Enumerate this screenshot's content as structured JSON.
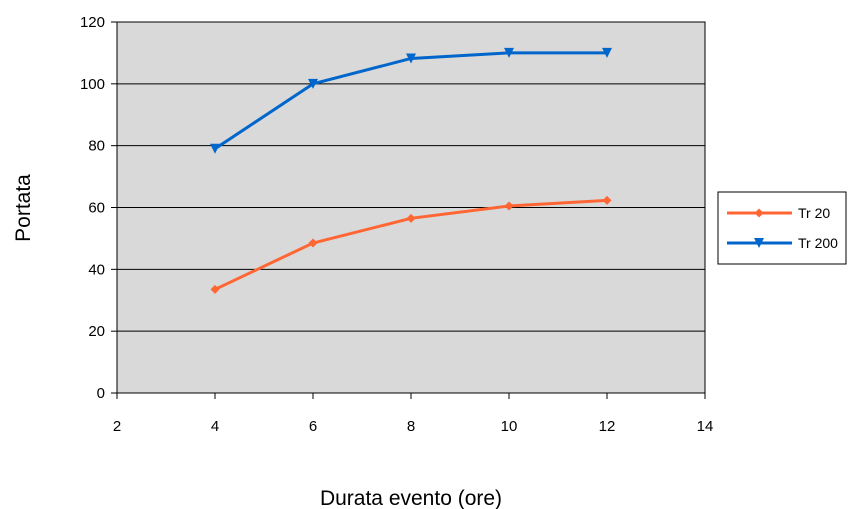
{
  "chart_data": {
    "type": "line",
    "xlabel": "Durata evento (ore)",
    "ylabel": "Portata",
    "xlim": [
      2,
      14
    ],
    "ylim": [
      0,
      120
    ],
    "xticks": [
      2,
      4,
      6,
      8,
      10,
      12,
      14
    ],
    "yticks": [
      0,
      20,
      40,
      60,
      80,
      100,
      120
    ],
    "grid": "horizontal",
    "legend_position": "right",
    "plot_background": "#d9d9d9",
    "series": [
      {
        "name": "Tr 20",
        "color": "#ff6633",
        "marker": "diamond",
        "x": [
          4,
          6,
          8,
          10,
          12
        ],
        "y": [
          33.5,
          48.5,
          56.5,
          60.5,
          62.3
        ]
      },
      {
        "name": "Tr 200",
        "color": "#0066cc",
        "marker": "triangle-down",
        "x": [
          4,
          6,
          8,
          10,
          12
        ],
        "y": [
          79,
          100,
          108.2,
          110,
          110
        ]
      }
    ]
  }
}
